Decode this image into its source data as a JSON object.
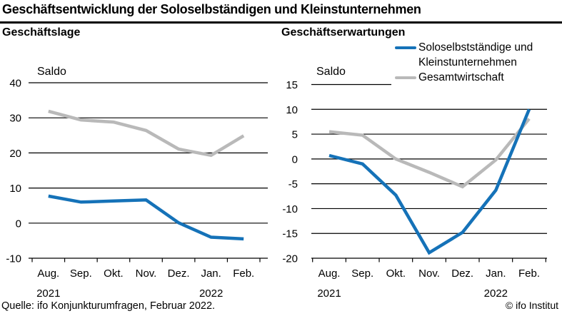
{
  "header": {
    "title": "Geschäftsentwicklung der Soloselbständigen und Kleinstunternehmen"
  },
  "legend": {
    "items": [
      {
        "label": "Soloselbstständige und Kleinstunternehmen",
        "color": "#1572b8"
      },
      {
        "label": "Gesamtwirtschaft",
        "color": "#b9b9b9"
      }
    ]
  },
  "footer": {
    "source": "Quelle: ifo Konjunkturumfragen, Februar 2022.",
    "copyright": "© ifo Institut"
  },
  "colors": {
    "solo_blue": "#1572b8",
    "gesamt_gray": "#b9b9b9",
    "axis_black": "#000000"
  },
  "chart_data": [
    {
      "type": "line",
      "title": "Geschäftslage",
      "axis_label": "Saldo",
      "xlabel": "",
      "ylabel": "Saldo",
      "grid": true,
      "categories": [
        "Aug.",
        "Sep.",
        "Okt.",
        "Nov.",
        "Dez.",
        "Jan.",
        "Feb."
      ],
      "year_labels": [
        {
          "index": 0,
          "text": "2021"
        },
        {
          "index": 5,
          "text": "2022"
        }
      ],
      "ylim": [
        -10,
        40
      ],
      "ytick_step": 10,
      "series": [
        {
          "name": "Soloselbstständige und Kleinstunternehmen",
          "color": "#1572b8",
          "values": [
            7.7,
            6.0,
            6.3,
            6.6,
            0.1,
            -4.0,
            -4.5
          ]
        },
        {
          "name": "Gesamtwirtschaft",
          "color": "#b9b9b9",
          "values": [
            31.9,
            29.4,
            28.8,
            26.4,
            21.1,
            19.3,
            24.9
          ]
        }
      ]
    },
    {
      "type": "line",
      "title": "Geschäftserwartungen",
      "axis_label": "Saldo",
      "xlabel": "",
      "ylabel": "Saldo",
      "grid": true,
      "categories": [
        "Aug.",
        "Sep.",
        "Okt.",
        "Nov.",
        "Dez.",
        "Jan.",
        "Feb."
      ],
      "year_labels": [
        {
          "index": 0,
          "text": "2021"
        },
        {
          "index": 5,
          "text": "2022"
        }
      ],
      "ylim": [
        -20,
        15
      ],
      "ytick_step": 5,
      "series": [
        {
          "name": "Soloselbstständige und Kleinstunternehmen",
          "color": "#1572b8",
          "values": [
            0.7,
            -1.0,
            -7.3,
            -18.9,
            -14.8,
            -6.3,
            10.0
          ]
        },
        {
          "name": "Gesamtwirtschaft",
          "color": "#b9b9b9",
          "values": [
            5.5,
            4.8,
            0.0,
            -2.7,
            -5.6,
            -0.2,
            8.1
          ]
        }
      ]
    }
  ]
}
